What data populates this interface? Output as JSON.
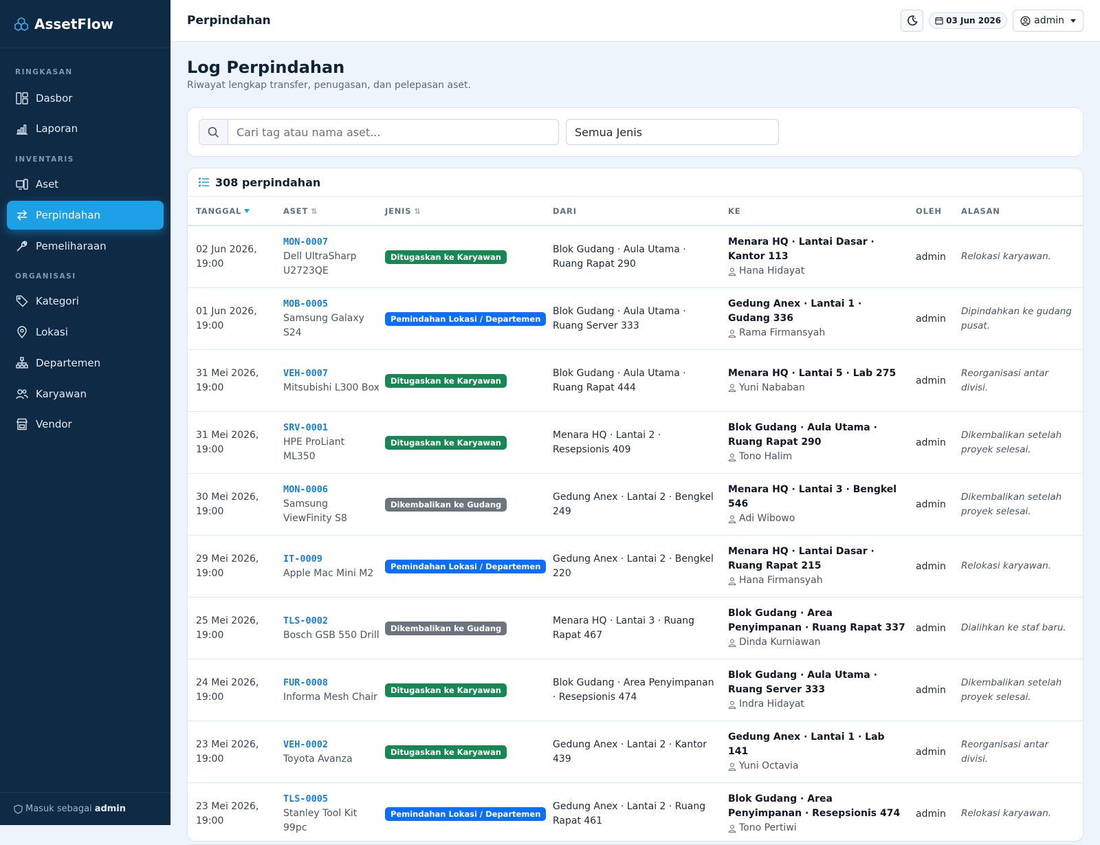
{
  "app": {
    "name": "AssetFlow"
  },
  "sidebar": {
    "sections": [
      {
        "title": "RINGKASAN"
      },
      {
        "title": "INVENTARIS"
      },
      {
        "title": "ORGANISASI"
      }
    ],
    "items": [
      {
        "label": "Dasbor",
        "icon": "dashboard-icon"
      },
      {
        "label": "Laporan",
        "icon": "bar-chart-icon"
      },
      {
        "label": "Aset",
        "icon": "devices-icon"
      },
      {
        "label": "Perpindahan",
        "icon": "transfer-icon",
        "active": true
      },
      {
        "label": "Pemeliharaan",
        "icon": "wrench-icon"
      },
      {
        "label": "Kategori",
        "icon": "tag-icon"
      },
      {
        "label": "Lokasi",
        "icon": "location-pin-icon"
      },
      {
        "label": "Departemen",
        "icon": "org-chart-icon"
      },
      {
        "label": "Karyawan",
        "icon": "people-icon"
      },
      {
        "label": "Vendor",
        "icon": "shop-icon"
      }
    ],
    "footer": {
      "prefix": "Masuk sebagai",
      "user": "admin"
    }
  },
  "topbar": {
    "title": "Perpindahan",
    "date": "03 Jun 2026",
    "user": "admin"
  },
  "page": {
    "heading": "Log Perpindahan",
    "subtitle": "Riwayat lengkap transfer, penugasan, dan pelepasan aset."
  },
  "filters": {
    "search_placeholder": "Cari tag atau nama aset...",
    "type_selected": "Semua Jenis"
  },
  "table": {
    "count_label": "308 perpindahan",
    "columns": [
      "TANGGAL",
      "ASET",
      "JENIS",
      "DARI",
      "KE",
      "OLEH",
      "ALASAN"
    ],
    "rows": [
      {
        "date1": "02 Jun 2026,",
        "date2": "19:00",
        "tag": "MON-0007",
        "asset": "Dell UltraSharp U2723QE",
        "type": "Ditugaskan ke Karyawan",
        "badge": "green",
        "from": "Blok Gudang · Aula Utama · Ruang Rapat 290",
        "to": "Menara HQ · Lantai Dasar · Kantor 113",
        "person": "Hana Hidayat",
        "by": "admin",
        "reason": "Relokasi karyawan."
      },
      {
        "date1": "01 Jun 2026,",
        "date2": "19:00",
        "tag": "MOB-0005",
        "asset": "Samsung Galaxy S24",
        "type": "Pemindahan Lokasi / Departemen",
        "badge": "blue",
        "from": "Blok Gudang · Aula Utama · Ruang Server 333",
        "to": "Gedung Anex · Lantai 1 · Gudang 336",
        "person": "Rama Firmansyah",
        "by": "admin",
        "reason": "Dipindahkan ke gudang pusat."
      },
      {
        "date1": "31 Mei 2026,",
        "date2": "19:00",
        "tag": "VEH-0007",
        "asset": "Mitsubishi L300 Box",
        "type": "Ditugaskan ke Karyawan",
        "badge": "green",
        "from": "Blok Gudang · Aula Utama · Ruang Rapat 444",
        "to": "Menara HQ · Lantai 5 · Lab 275",
        "person": "Yuni Nababan",
        "by": "admin",
        "reason": "Reorganisasi antar divisi."
      },
      {
        "date1": "31 Mei 2026,",
        "date2": "19:00",
        "tag": "SRV-0001",
        "asset": "HPE ProLiant ML350",
        "type": "Ditugaskan ke Karyawan",
        "badge": "green",
        "from": "Menara HQ · Lantai 2 · Resepsionis 409",
        "to": "Blok Gudang · Aula Utama · Ruang Rapat 290",
        "person": "Tono Halim",
        "by": "admin",
        "reason": "Dikembalikan setelah proyek selesai."
      },
      {
        "date1": "30 Mei 2026,",
        "date2": "19:00",
        "tag": "MON-0006",
        "asset": "Samsung ViewFinity S8",
        "type": "Dikembalikan ke Gudang",
        "badge": "gray",
        "from": "Gedung Anex · Lantai 2 · Bengkel 249",
        "to": "Menara HQ · Lantai 3 · Bengkel 546",
        "person": "Adi Wibowo",
        "by": "admin",
        "reason": "Dikembalikan setelah proyek selesai."
      },
      {
        "date1": "29 Mei 2026,",
        "date2": "19:00",
        "tag": "IT-0009",
        "asset": "Apple Mac Mini M2",
        "type": "Pemindahan Lokasi / Departemen",
        "badge": "blue",
        "from": "Gedung Anex · Lantai 2 · Bengkel 220",
        "to": "Menara HQ · Lantai Dasar · Ruang Rapat 215",
        "person": "Hana Firmansyah",
        "by": "admin",
        "reason": "Relokasi karyawan."
      },
      {
        "date1": "25 Mei 2026,",
        "date2": "19:00",
        "tag": "TLS-0002",
        "asset": "Bosch GSB 550 Drill",
        "type": "Dikembalikan ke Gudang",
        "badge": "gray",
        "from": "Menara HQ · Lantai 3 · Ruang Rapat 467",
        "to": "Blok Gudang · Area Penyimpanan · Ruang Rapat 337",
        "person": "Dinda Kurniawan",
        "by": "admin",
        "reason": "Dialihkan ke staf baru."
      },
      {
        "date1": "24 Mei 2026,",
        "date2": "19:00",
        "tag": "FUR-0008",
        "asset": "Informa Mesh Chair",
        "type": "Ditugaskan ke Karyawan",
        "badge": "green",
        "from": "Blok Gudang · Area Penyimpanan · Resepsionis 474",
        "to": "Blok Gudang · Aula Utama · Ruang Server 333",
        "person": "Indra Hidayat",
        "by": "admin",
        "reason": "Dikembalikan setelah proyek selesai."
      },
      {
        "date1": "23 Mei 2026,",
        "date2": "19:00",
        "tag": "VEH-0002",
        "asset": "Toyota Avanza",
        "type": "Ditugaskan ke Karyawan",
        "badge": "green",
        "from": "Gedung Anex · Lantai 2 · Kantor 439",
        "to": "Gedung Anex · Lantai 1 · Lab 141",
        "person": "Yuni Octavia",
        "by": "admin",
        "reason": "Reorganisasi antar divisi."
      },
      {
        "date1": "23 Mei 2026,",
        "date2": "19:00",
        "tag": "TLS-0005",
        "asset": "Stanley Tool Kit 99pc",
        "type": "Pemindahan Lokasi / Departemen",
        "badge": "blue",
        "from": "Gedung Anex · Lantai 2 · Ruang Rapat 461",
        "to": "Blok Gudang · Area Penyimpanan · Resepsionis 474",
        "person": "Tono Pertiwi",
        "by": "admin",
        "reason": "Relokasi karyawan."
      }
    ]
  }
}
